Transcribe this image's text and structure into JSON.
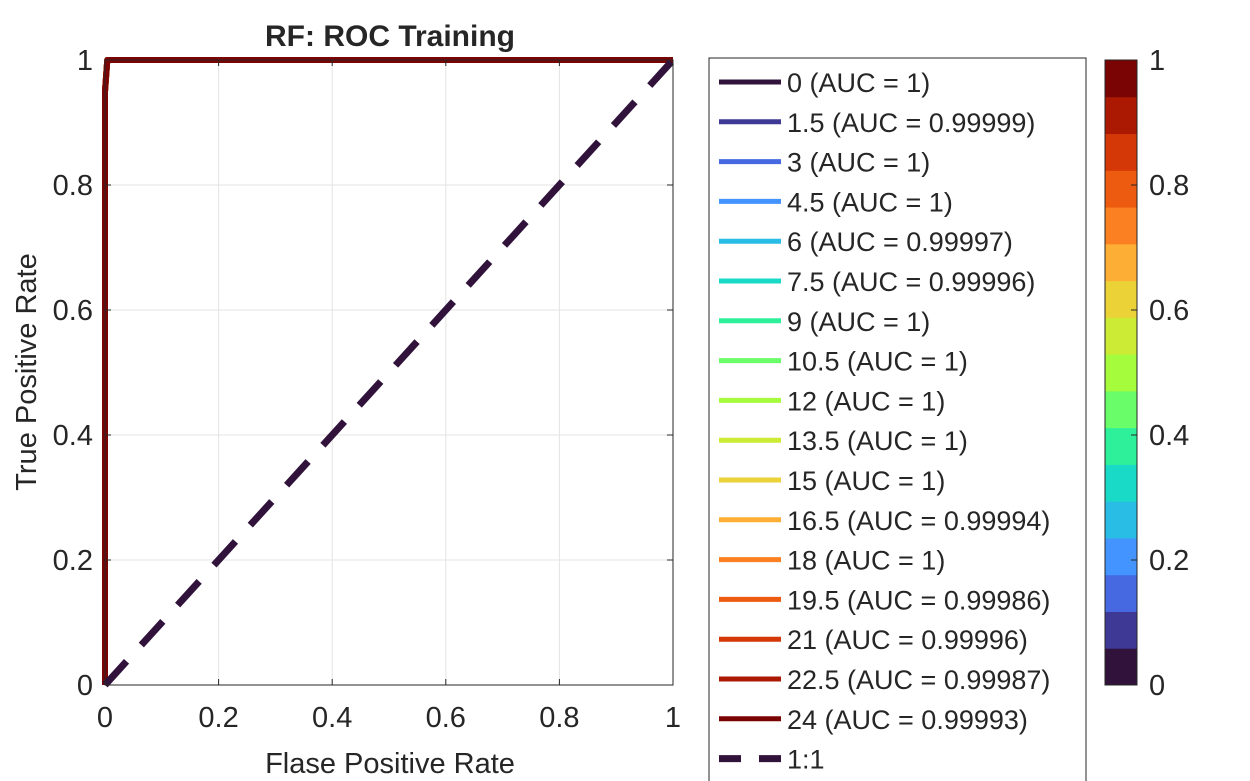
{
  "chart_data": {
    "type": "line",
    "title": "RF: ROC Training",
    "xlabel": "Flase Positive Rate",
    "ylabel": "True Positive Rate",
    "xlim": [
      0,
      1
    ],
    "ylim": [
      0,
      1
    ],
    "xticks": [
      0,
      0.2,
      0.4,
      0.6,
      0.8,
      1
    ],
    "yticks": [
      0,
      0.2,
      0.4,
      0.6,
      0.8,
      1
    ],
    "xtick_labels": [
      "0",
      "0.2",
      "0.4",
      "0.6",
      "0.8",
      "1"
    ],
    "ytick_labels": [
      "0",
      "0.2",
      "0.4",
      "0.6",
      "0.8",
      "1"
    ],
    "grid": true,
    "legend_position": "right",
    "series": [
      {
        "name": "0 (AUC = 1)",
        "color": "#30123b",
        "x": [
          0,
          0,
          0.004,
          1
        ],
        "y": [
          0,
          0.95,
          1,
          1
        ]
      },
      {
        "name": "1.5 (AUC = 0.99999)",
        "color": "#3e3994",
        "x": [
          0,
          0,
          0.004,
          1
        ],
        "y": [
          0,
          0.95,
          1,
          1
        ]
      },
      {
        "name": "3 (AUC = 1)",
        "color": "#4669e1",
        "x": [
          0,
          0,
          0.004,
          1
        ],
        "y": [
          0,
          0.95,
          1,
          1
        ]
      },
      {
        "name": "4.5 (AUC = 1)",
        "color": "#4394fe",
        "x": [
          0,
          0,
          0.004,
          1
        ],
        "y": [
          0,
          0.95,
          1,
          1
        ]
      },
      {
        "name": "6 (AUC = 0.99997)",
        "color": "#29bde6",
        "x": [
          0,
          0,
          0.004,
          1
        ],
        "y": [
          0,
          0.95,
          1,
          1
        ]
      },
      {
        "name": "7.5 (AUC = 0.99996)",
        "color": "#18dac7",
        "x": [
          0,
          0,
          0.004,
          1
        ],
        "y": [
          0,
          0.95,
          1,
          1
        ]
      },
      {
        "name": "9 (AUC = 1)",
        "color": "#2ff09a",
        "x": [
          0,
          0,
          0.004,
          1
        ],
        "y": [
          0,
          0.95,
          1,
          1
        ]
      },
      {
        "name": "10.5 (AUC = 1)",
        "color": "#6afd6a",
        "x": [
          0,
          0,
          0.004,
          1
        ],
        "y": [
          0,
          0.95,
          1,
          1
        ]
      },
      {
        "name": "12 (AUC = 1)",
        "color": "#a4fc3c",
        "x": [
          0,
          0,
          0.004,
          1
        ],
        "y": [
          0,
          0.95,
          1,
          1
        ]
      },
      {
        "name": "13.5 (AUC = 1)",
        "color": "#cbeb34",
        "x": [
          0,
          0,
          0.004,
          1
        ],
        "y": [
          0,
          0.95,
          1,
          1
        ]
      },
      {
        "name": "15 (AUC = 1)",
        "color": "#ebd237",
        "x": [
          0,
          0,
          0.004,
          1
        ],
        "y": [
          0,
          0.95,
          1,
          1
        ]
      },
      {
        "name": "16.5 (AUC = 0.99994)",
        "color": "#fdae35",
        "x": [
          0,
          0,
          0.004,
          1
        ],
        "y": [
          0,
          0.95,
          1,
          1
        ]
      },
      {
        "name": "18 (AUC = 1)",
        "color": "#fb8022",
        "x": [
          0,
          0,
          0.004,
          1
        ],
        "y": [
          0,
          0.95,
          1,
          1
        ]
      },
      {
        "name": "19.5 (AUC = 0.99986)",
        "color": "#ec5b0f",
        "x": [
          0,
          0,
          0.004,
          1
        ],
        "y": [
          0,
          0.95,
          1,
          1
        ]
      },
      {
        "name": "21 (AUC = 0.99996)",
        "color": "#d33806",
        "x": [
          0,
          0,
          0.004,
          1
        ],
        "y": [
          0,
          0.95,
          1,
          1
        ]
      },
      {
        "name": "22.5 (AUC = 0.99987)",
        "color": "#ab1902",
        "x": [
          0,
          0,
          0.004,
          1
        ],
        "y": [
          0,
          0.95,
          1,
          1
        ]
      },
      {
        "name": "24 (AUC = 0.99993)",
        "color": "#7a0403",
        "x": [
          0,
          0,
          0.004,
          1
        ],
        "y": [
          0,
          0.95,
          1,
          1
        ]
      },
      {
        "name": "1:1",
        "color": "#30123b",
        "dashed": true,
        "x": [
          0,
          1
        ],
        "y": [
          0,
          1
        ]
      }
    ],
    "colorbar": {
      "range": [
        0,
        1
      ],
      "ticks": [
        0,
        0.2,
        0.4,
        0.6,
        0.8,
        1
      ],
      "tick_labels": [
        "0",
        "0.2",
        "0.4",
        "0.6",
        "0.8",
        "1"
      ],
      "colors": [
        "#30123b",
        "#3e3994",
        "#4669e1",
        "#4394fe",
        "#29bde6",
        "#18dac7",
        "#2ff09a",
        "#6afd6a",
        "#a4fc3c",
        "#cbeb34",
        "#ebd237",
        "#fdae35",
        "#fb8022",
        "#ec5b0f",
        "#d33806",
        "#ab1902",
        "#7a0403"
      ]
    }
  }
}
